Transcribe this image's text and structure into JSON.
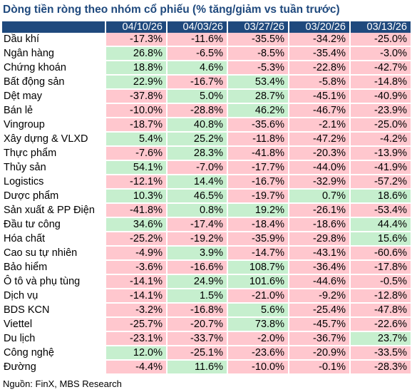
{
  "title": "Dòng tiền ròng theo nhóm cổ phiếu (% tăng/giảm vs tuần trước)",
  "columns": [
    "04/10/26",
    "04/03/26",
    "03/27/26",
    "03/20/26",
    "03/13/26"
  ],
  "colors": {
    "positive": "#c6efce",
    "negative": "#ffc7ce",
    "header": "#1f497d",
    "title": "#1f497d"
  },
  "rows": [
    {
      "name": "Dầu khí",
      "values": [
        "-17.3%",
        "-11.6%",
        "-35.5%",
        "-34.2%",
        "-25.0%"
      ]
    },
    {
      "name": "Ngân hàng",
      "values": [
        "26.8%",
        "-6.5%",
        "-8.5%",
        "-35.4%",
        "-3.0%"
      ]
    },
    {
      "name": "Chứng khoán",
      "values": [
        "18.8%",
        "4.6%",
        "-5.3%",
        "-22.8%",
        "-42.7%"
      ]
    },
    {
      "name": "Bất động sản",
      "values": [
        "22.9%",
        "-16.7%",
        "53.4%",
        "-5.8%",
        "-14.8%"
      ]
    },
    {
      "name": "Dệt may",
      "values": [
        "-37.8%",
        "5.0%",
        "28.7%",
        "-45.1%",
        "-40.9%"
      ]
    },
    {
      "name": "Bán lẻ",
      "values": [
        "-10.0%",
        "-28.8%",
        "46.2%",
        "-46.7%",
        "-23.9%"
      ]
    },
    {
      "name": "Vingroup",
      "values": [
        "-18.7%",
        "40.8%",
        "-35.6%",
        "-2.1%",
        "-25.0%"
      ]
    },
    {
      "name": "Xây dựng & VLXD",
      "values": [
        "5.4%",
        "25.2%",
        "-11.8%",
        "-47.2%",
        "-4.2%"
      ]
    },
    {
      "name": "Thực phẩm",
      "values": [
        "-7.6%",
        "28.3%",
        "-41.8%",
        "-20.3%",
        "-13.9%"
      ]
    },
    {
      "name": "Thủy sản",
      "values": [
        "54.1%",
        "-7.0%",
        "-17.7%",
        "-44.0%",
        "-41.9%"
      ]
    },
    {
      "name": "Logistics",
      "values": [
        "-12.1%",
        "14.4%",
        "-16.7%",
        "-32.9%",
        "-57.2%"
      ]
    },
    {
      "name": "Dược phẩm",
      "values": [
        "10.3%",
        "46.5%",
        "-19.7%",
        "0.7%",
        "18.6%"
      ]
    },
    {
      "name": "Sản xuất & PP Điện",
      "values": [
        "-41.8%",
        "0.8%",
        "19.2%",
        "-26.1%",
        "-53.4%"
      ]
    },
    {
      "name": "Đầu tư công",
      "values": [
        "34.6%",
        "-17.4%",
        "-18.4%",
        "-18.6%",
        "44.4%"
      ]
    },
    {
      "name": "Hóa chất",
      "values": [
        "-25.2%",
        "-19.2%",
        "-35.9%",
        "-29.8%",
        "15.6%"
      ]
    },
    {
      "name": "Cao su tự nhiên",
      "values": [
        "-4.9%",
        "3.9%",
        "-14.7%",
        "-43.1%",
        "-60.6%"
      ]
    },
    {
      "name": "Bảo hiểm",
      "values": [
        "-3.6%",
        "-16.6%",
        "108.7%",
        "-36.4%",
        "-17.8%"
      ]
    },
    {
      "name": "Ô tô và phụ tùng",
      "values": [
        "-14.1%",
        "24.9%",
        "101.6%",
        "-44.6%",
        "-0.5%"
      ]
    },
    {
      "name": "Dịch vụ",
      "values": [
        "-14.1%",
        "1.5%",
        "-21.0%",
        "-9.2%",
        "-12.8%"
      ]
    },
    {
      "name": "BDS KCN",
      "values": [
        "-3.2%",
        "-16.8%",
        "5.6%",
        "-25.4%",
        "-47.8%"
      ]
    },
    {
      "name": "Viettel",
      "values": [
        "-25.7%",
        "-20.7%",
        "73.8%",
        "-45.7%",
        "-22.6%"
      ]
    },
    {
      "name": "Du lịch",
      "values": [
        "-23.1%",
        "-33.7%",
        "-2.0%",
        "-36.7%",
        "23.7%"
      ]
    },
    {
      "name": "Công nghệ",
      "values": [
        "12.0%",
        "-25.1%",
        "-23.6%",
        "-20.9%",
        "-33.5%"
      ]
    },
    {
      "name": "Đường",
      "values": [
        "-4.4%",
        "11.6%",
        "-10.0%",
        "-0.1%",
        "-28.3%"
      ]
    }
  ],
  "source": "Nguồn: FinX, MBS Research"
}
